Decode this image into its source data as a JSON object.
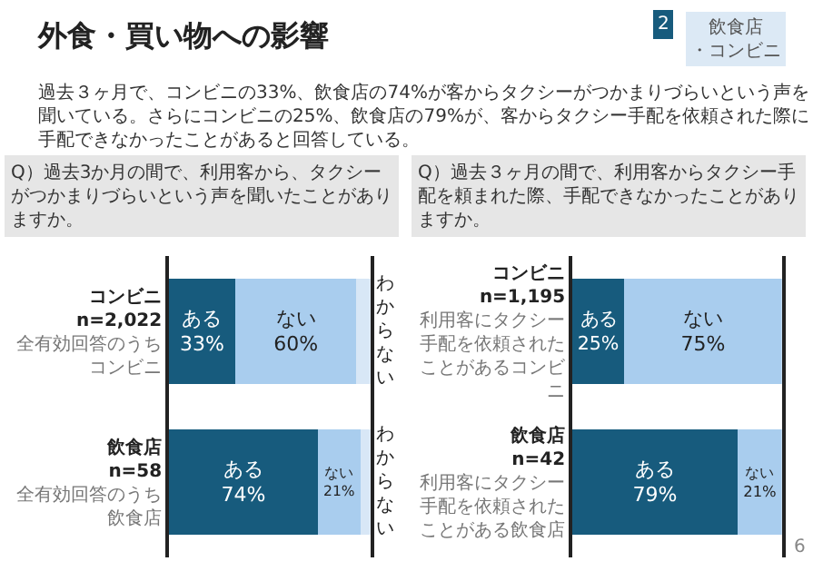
{
  "chart_data": [
    {
      "type": "other",
      "title": "外食・買い物への影響",
      "annotations": [
        "過去３ヶ月で、コンビニの33%、飲食店の74%が客からタクシーがつかまりづらいという声を聞いている。さらにコンビニの25%、飲食店の79%が、客からタクシー手配を依頼された際に手配できなかったことがあると回答している。",
        "2",
        "飲食店・コンビニ",
        "6"
      ]
    },
    {
      "type": "bar",
      "orientation": "horizontal",
      "stacked": true,
      "title": "Q）過去3か月の間で、利用客から、タクシーがつかまりづらいという声を聞いたことがありますか。",
      "categories": [
        "コンビニ\nn=2,022\n全有効回答のうちコンビニ",
        "飲食店\nn=58\n全有効回答のうち飲食店"
      ],
      "xlim": [
        0,
        100
      ],
      "tick_labels": "y",
      "series": [
        {
          "name": "ある",
          "color": "#175b7d",
          "values": [
            33,
            74
          ],
          "value_labels": [
            "33%",
            "74%"
          ]
        },
        {
          "name": "ない",
          "color": "#a9cdee",
          "values": [
            60,
            21
          ],
          "value_labels": [
            "60%",
            "21%"
          ]
        },
        {
          "name": "わからない",
          "color": "#d8e7f6",
          "values": [
            7,
            5
          ],
          "value_labels": [
            null,
            null
          ]
        }
      ]
    },
    {
      "type": "bar",
      "orientation": "horizontal",
      "stacked": true,
      "title": "Q）過去３ヶ月の間で、利用客からタクシー手配を頼まれた際、手配できなかったことがありますか。",
      "categories": [
        "コンビニ\nn=1,195\n利用客にタクシー手配を依頼されたことがあるコンビニ",
        "飲食店\nn=42\n利用客にタクシー手配を依頼されたことがある飲食店"
      ],
      "xlim": [
        0,
        100
      ],
      "tick_labels": "y",
      "series": [
        {
          "name": "ある",
          "color": "#175b7d",
          "values": [
            25,
            79
          ],
          "value_labels": [
            "25%",
            "79%"
          ]
        },
        {
          "name": "ない",
          "color": "#a9cdee",
          "values": [
            75,
            21
          ],
          "value_labels": [
            "75%",
            "21%"
          ]
        }
      ]
    }
  ]
}
